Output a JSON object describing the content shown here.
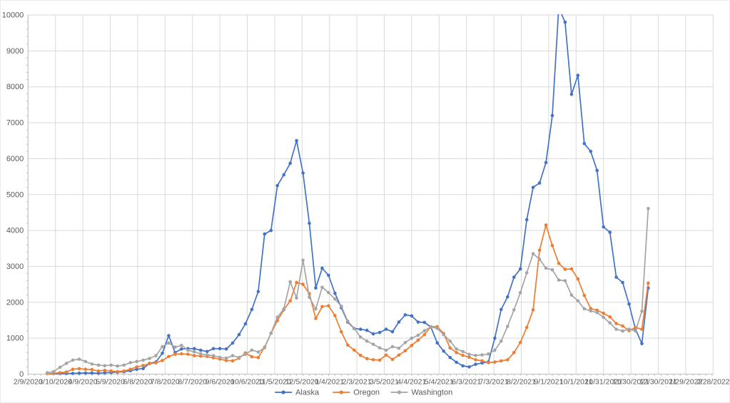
{
  "colors": {
    "background": "#FFFFFF",
    "gridline": "#D9D9D9",
    "axis_line": "#BFBFBF",
    "label_text": "#595959",
    "alaska": "#4472C4",
    "oregon": "#ED7D31",
    "washington": "#A5A5A5"
  },
  "legend": {
    "items": [
      {
        "label": "Alaska",
        "color": "#4472C4"
      },
      {
        "label": "Oregon",
        "color": "#ED7D31"
      },
      {
        "label": "Washington",
        "color": "#A5A5A5"
      }
    ]
  },
  "chart_data": {
    "type": "line",
    "title": "",
    "xlabel": "",
    "ylabel": "",
    "grid": true,
    "legend_position": "bottom-center",
    "marker": "circle",
    "y_axis": {
      "min": 0,
      "max": 10000,
      "major_step": 1000,
      "minor_step": 200,
      "tick_labels": [
        "0",
        "1000",
        "2000",
        "3000",
        "4000",
        "5000",
        "6000",
        "7000",
        "8000",
        "9000",
        "10000"
      ]
    },
    "x_axis": {
      "tick_labels": [
        "2/9/2020",
        "3/10/2020",
        "4/9/2020",
        "5/9/2020",
        "6/8/2020",
        "7/8/2020",
        "8/7/2020",
        "9/6/2020",
        "10/6/2020",
        "11/5/2020",
        "12/5/2020",
        "1/4/2021",
        "2/3/2021",
        "3/5/2021",
        "4/4/2021",
        "5/4/2021",
        "6/3/2021",
        "7/3/2021",
        "8/2/2021",
        "9/1/2021",
        "10/1/2021",
        "10/31/2021",
        "11/30/2021",
        "12/30/2021",
        "1/29/2022",
        "2/28/2022"
      ],
      "tick_interval_days": 30,
      "point_interval_days": 7,
      "first_point_offset_days": 21,
      "total_days": 750
    },
    "series": [
      {
        "name": "Alaska",
        "color": "#4472C4",
        "values": [
          0,
          5,
          10,
          15,
          20,
          25,
          30,
          30,
          25,
          35,
          45,
          55,
          65,
          95,
          135,
          155,
          300,
          335,
          580,
          1070,
          600,
          700,
          710,
          710,
          665,
          630,
          710,
          710,
          700,
          865,
          1100,
          1400,
          1800,
          2300,
          3900,
          4000,
          5250,
          5550,
          5870,
          6500,
          5600,
          4200,
          2400,
          2950,
          2750,
          2250,
          1850,
          1450,
          1270,
          1250,
          1220,
          1120,
          1160,
          1250,
          1180,
          1450,
          1650,
          1620,
          1450,
          1440,
          1310,
          870,
          640,
          460,
          330,
          230,
          200,
          275,
          310,
          340,
          1000,
          1800,
          2150,
          2700,
          2930,
          4300,
          5200,
          5320,
          5890,
          7200,
          10200,
          9800,
          7790,
          8320,
          6420,
          6200,
          5670,
          4100,
          3950,
          2700,
          2550,
          1950,
          1250,
          850,
          2400
        ]
      },
      {
        "name": "Oregon",
        "color": "#ED7D31",
        "values": [
          0,
          20,
          40,
          60,
          135,
          150,
          135,
          125,
          85,
          105,
          85,
          70,
          85,
          135,
          200,
          240,
          290,
          315,
          380,
          490,
          555,
          565,
          555,
          515,
          500,
          490,
          450,
          420,
          380,
          370,
          440,
          590,
          485,
          460,
          750,
          1140,
          1490,
          1790,
          2040,
          2550,
          2500,
          2240,
          1550,
          1880,
          1900,
          1630,
          1180,
          810,
          670,
          520,
          430,
          400,
          390,
          530,
          410,
          530,
          650,
          800,
          945,
          1100,
          1320,
          1320,
          1130,
          730,
          600,
          520,
          470,
          400,
          370,
          320,
          335,
          370,
          400,
          600,
          880,
          1300,
          1790,
          3450,
          4150,
          3580,
          3085,
          2920,
          2930,
          2650,
          2190,
          1825,
          1780,
          1695,
          1595,
          1410,
          1340,
          1210,
          1300,
          1250,
          2535
        ]
      },
      {
        "name": "Washington",
        "color": "#A5A5A5",
        "values": [
          35,
          70,
          190,
          300,
          390,
          415,
          350,
          280,
          250,
          235,
          250,
          225,
          250,
          320,
          350,
          390,
          435,
          515,
          765,
          865,
          750,
          800,
          665,
          620,
          565,
          535,
          515,
          465,
          445,
          515,
          465,
          550,
          670,
          615,
          735,
          1140,
          1585,
          1815,
          2570,
          2120,
          3170,
          2140,
          1815,
          2420,
          2270,
          2090,
          1890,
          1475,
          1275,
          1030,
          920,
          830,
          730,
          665,
          765,
          720,
          880,
          1000,
          1080,
          1210,
          1315,
          1275,
          1100,
          920,
          700,
          630,
          550,
          520,
          535,
          560,
          665,
          920,
          1330,
          1790,
          2270,
          2820,
          3350,
          3200,
          2950,
          2905,
          2620,
          2600,
          2200,
          2040,
          1820,
          1760,
          1715,
          1580,
          1425,
          1250,
          1200,
          1250,
          1200,
          1750,
          4610
        ]
      }
    ]
  }
}
